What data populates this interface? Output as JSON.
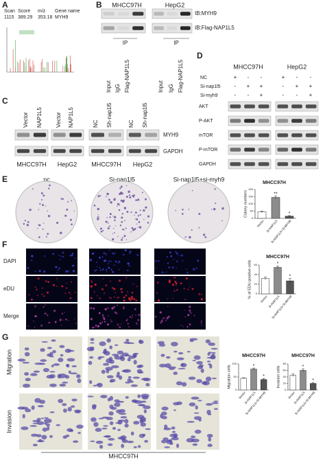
{
  "panels": {
    "A": {
      "label": "A",
      "headers": [
        "Scan",
        "Score",
        "m/z",
        "Gene name"
      ],
      "values": [
        "1115",
        "389.29",
        "353.18",
        "MYH9"
      ]
    },
    "B": {
      "label": "B",
      "cells": [
        "MHCC97H",
        "HepG2"
      ],
      "blots": [
        "IB:MYH9",
        "IB:Flag-NAP1L5"
      ],
      "ip": [
        "IP",
        "IP"
      ],
      "lanes": [
        "Input",
        "IgG",
        "Flag-NAP1L5"
      ]
    },
    "C": {
      "label": "C",
      "lanes": [
        "Vector",
        "NAP1L5",
        "Vector",
        "NAP1L5",
        "NC",
        "Sh-nap1l5",
        "NC",
        "Sh-nap1l5"
      ],
      "blots": [
        "MYH9",
        "GAPDH"
      ],
      "cells": [
        "MHCC97H",
        "HepG2",
        "MHCC97H",
        "HepG2"
      ]
    },
    "D": {
      "label": "D",
      "cells": [
        "MHCC97H",
        "HepG2"
      ],
      "conditions": [
        {
          "name": "NC",
          "signs": [
            "+",
            "-",
            "-",
            "+",
            "-",
            "-"
          ]
        },
        {
          "name": "Si-nap1l5",
          "signs": [
            "-",
            "+",
            "+",
            "-",
            "+",
            "+"
          ]
        },
        {
          "name": "Si-myh9",
          "signs": [
            "-",
            "-",
            "+",
            "-",
            "-",
            "+"
          ]
        }
      ],
      "blots": [
        "AKT",
        "P-AKT",
        "mTOR",
        "P-mTOR",
        "GAPDH"
      ]
    },
    "E": {
      "label": "E",
      "groups": [
        "nc",
        "Si-nap1l5",
        "Si-nap1l5+si-myh9"
      ]
    },
    "F": {
      "label": "F",
      "rows": [
        "DAPI",
        "eDU",
        "Merge"
      ]
    },
    "G": {
      "label": "G",
      "rows": [
        "Migration",
        "Invasion"
      ],
      "footer": "MHCC97H"
    }
  },
  "chart_data": [
    {
      "type": "bar",
      "title": "MHCC97H",
      "ylabel": "Colony numbers",
      "categories": [
        "Vector",
        "Si-NAP1L5",
        "Si-NAP1L5+Si-MYH9"
      ],
      "values": [
        45,
        145,
        15
      ],
      "errors": [
        6,
        10,
        4
      ],
      "annotations": [
        null,
        "**",
        "*"
      ],
      "colors": [
        "#ffffff",
        "#8c8c8c",
        "#555555"
      ],
      "ylim": [
        0,
        200
      ],
      "yticks": [
        0,
        50,
        100,
        150,
        200
      ]
    },
    {
      "type": "bar",
      "title": "MHCC97H",
      "ylabel": "% of EDU positive cells",
      "categories": [
        "Vector",
        "Si-NAP1L5",
        "Si-NAP1L5+Si-MYH9"
      ],
      "values": [
        32,
        55,
        27
      ],
      "errors": [
        3,
        3,
        5
      ],
      "annotations": [
        null,
        "*",
        "*"
      ],
      "colors": [
        "#ffffff",
        "#8c8c8c",
        "#555555"
      ],
      "ylim": [
        0,
        60
      ],
      "yticks": [
        0,
        20,
        40,
        60
      ]
    },
    {
      "type": "bar",
      "title": "MHCC97H",
      "ylabel": "Migration cells",
      "categories": [
        "Vector",
        "Si-NAP1L5",
        "Si-NAP1L5+Si-MYH9"
      ],
      "values": [
        45,
        80,
        40
      ],
      "errors": [
        2,
        4,
        4
      ],
      "annotations": [
        null,
        "*",
        "*"
      ],
      "colors": [
        "#ffffff",
        "#8c8c8c",
        "#555555"
      ],
      "ylim": [
        0,
        100
      ],
      "yticks": [
        0,
        50,
        100
      ]
    },
    {
      "type": "bar",
      "title": "MHCC97H",
      "ylabel": "Invasion cells",
      "categories": [
        "Vector",
        "Si-NAP1L5",
        "Si-NAP1L5+Si-MYH9"
      ],
      "values": [
        45,
        60,
        20
      ],
      "errors": [
        4,
        5,
        3
      ],
      "annotations": [
        null,
        "*",
        "*"
      ],
      "colors": [
        "#ffffff",
        "#8c8c8c",
        "#555555"
      ],
      "ylim": [
        0,
        80
      ],
      "yticks": [
        0,
        20,
        40,
        60,
        80
      ]
    }
  ]
}
